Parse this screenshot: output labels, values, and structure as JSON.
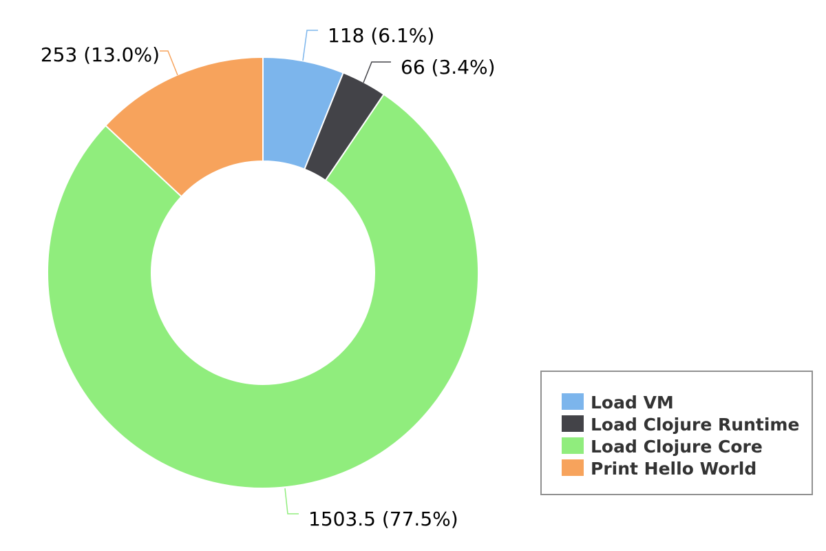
{
  "chart_data": {
    "type": "pie",
    "variant": "donut",
    "title": "",
    "categories": [
      "Load VM",
      "Load Clojure Runtime",
      "Load Clojure Core",
      "Print Hello World"
    ],
    "values": [
      118,
      66,
      1503.5,
      253
    ],
    "percentages": [
      6.1,
      3.4,
      77.5,
      13.0
    ],
    "data_labels": [
      "118 (6.1%)",
      "66 (3.4%)",
      "1503.5 (77.5%)",
      "253 (13.0%)"
    ],
    "colors": [
      "#7cb5ec",
      "#434348",
      "#90ed7d",
      "#f7a35c"
    ],
    "legend": {
      "placement": "bottom-right",
      "items": [
        "Load VM",
        "Load Clojure Runtime",
        "Load Clojure Core",
        "Print Hello World"
      ]
    }
  }
}
